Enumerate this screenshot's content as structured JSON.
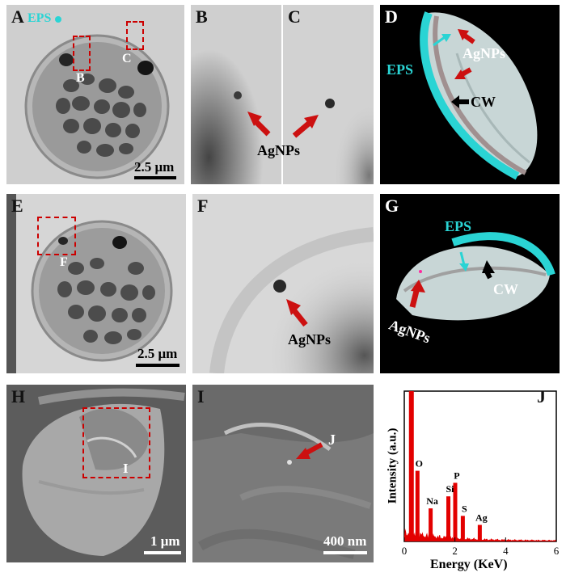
{
  "panel_labels": {
    "A": "A",
    "B": "B",
    "C": "C",
    "D": "D",
    "E": "E",
    "F": "F",
    "G": "G",
    "H": "H",
    "I": "I",
    "J": "J"
  },
  "panelA": {
    "eps": "EPS",
    "box_b": "B",
    "box_c": "C",
    "scale": "2.5 μm"
  },
  "panelBC": {
    "label": "AgNPs"
  },
  "panelD": {
    "eps": "EPS",
    "agnps": "AgNPs",
    "cw": "CW"
  },
  "panelE": {
    "box_f": "F",
    "scale": "2.5 μm"
  },
  "panelF": {
    "label": "AgNPs"
  },
  "panelG": {
    "eps": "EPS",
    "cw": "CW",
    "agnps": "AgNPs"
  },
  "panelH": {
    "box_i": "I",
    "scale": "1 μm"
  },
  "panelI": {
    "j": "J",
    "scale": "400 nm"
  },
  "colors": {
    "eps": "#2ad4d4",
    "arrow_red": "#cc1010",
    "spectrum": "#e30000"
  },
  "chart_data": {
    "type": "bar",
    "xlabel": "Energy (KeV)",
    "ylabel": "Intensity (a.u.)",
    "xlim": [
      0,
      6
    ],
    "xticks": [
      "0",
      "2",
      "4",
      "6"
    ],
    "peaks": [
      {
        "label": "O",
        "x": 0.52,
        "y": 0.47
      },
      {
        "label": "Na",
        "x": 1.04,
        "y": 0.22
      },
      {
        "label": "Si",
        "x": 1.74,
        "y": 0.3
      },
      {
        "label": "P",
        "x": 2.01,
        "y": 0.39
      },
      {
        "label": "S",
        "x": 2.31,
        "y": 0.17
      },
      {
        "label": "Ag",
        "x": 2.98,
        "y": 0.11
      }
    ],
    "main_peak_x": 0.28
  }
}
